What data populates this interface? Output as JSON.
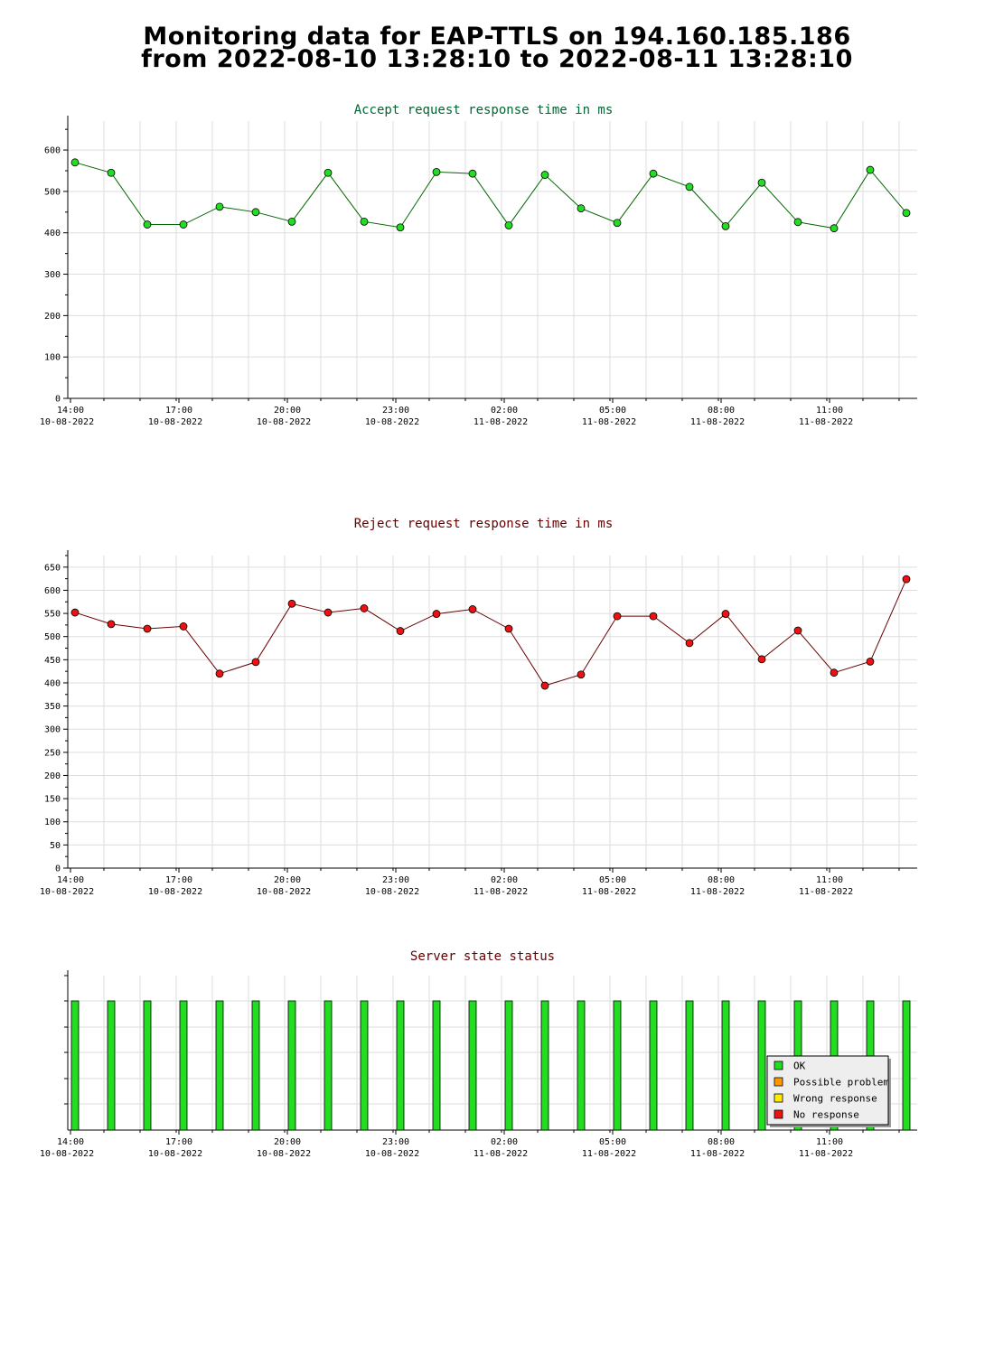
{
  "page": {
    "title_line1": "Monitoring data for EAP-TTLS on 194.160.185.186",
    "title_line2": "from 2022-08-10 13:28:10 to 2022-08-11 13:28:10"
  },
  "colors": {
    "accept_line": "#006600",
    "accept_marker": "#22dd22",
    "reject_line": "#660000",
    "reject_marker": "#ee1111",
    "status_bar": "#22dd22",
    "grid": "#dddddd",
    "accept_title": "#006633",
    "reject_title": "#660000",
    "status_title": "#660000",
    "legend_ok": "#22dd22",
    "legend_possible": "#ff9900",
    "legend_wrong": "#ffee00",
    "legend_none": "#ee1111"
  },
  "x_ticks": [
    {
      "time": "14:00",
      "date": "10-08-2022"
    },
    {
      "time": "17:00",
      "date": "10-08-2022"
    },
    {
      "time": "20:00",
      "date": "10-08-2022"
    },
    {
      "time": "23:00",
      "date": "10-08-2022"
    },
    {
      "time": "02:00",
      "date": "11-08-2022"
    },
    {
      "time": "05:00",
      "date": "11-08-2022"
    },
    {
      "time": "08:00",
      "date": "11-08-2022"
    },
    {
      "time": "11:00",
      "date": "11-08-2022"
    }
  ],
  "chart_data": [
    {
      "type": "line",
      "title": "Accept request response time in ms",
      "x": [
        "14:12",
        "15:12",
        "16:12",
        "17:12",
        "18:12",
        "19:12",
        "20:12",
        "21:12",
        "22:12",
        "23:12",
        "00:12",
        "01:12",
        "02:12",
        "03:12",
        "04:12",
        "05:12",
        "06:12",
        "07:12",
        "08:12",
        "09:12",
        "10:12",
        "11:12",
        "12:12",
        "13:12"
      ],
      "values": [
        570,
        545,
        420,
        420,
        463,
        450,
        427,
        545,
        427,
        413,
        547,
        543,
        418,
        540,
        459,
        424,
        543,
        511,
        416,
        521,
        426,
        411,
        552,
        448
      ],
      "ylim": [
        0,
        670
      ],
      "yticks": [
        0,
        100,
        200,
        300,
        400,
        500,
        600
      ],
      "grid": true
    },
    {
      "type": "line",
      "title": "Reject request response time in ms",
      "x": [
        "14:12",
        "15:12",
        "16:12",
        "17:12",
        "18:12",
        "19:12",
        "20:12",
        "21:12",
        "22:12",
        "23:12",
        "00:12",
        "01:12",
        "02:12",
        "03:12",
        "04:12",
        "05:12",
        "06:12",
        "07:12",
        "08:12",
        "09:12",
        "10:12",
        "11:12",
        "12:12",
        "13:12"
      ],
      "values": [
        552,
        527,
        517,
        522,
        420,
        445,
        571,
        552,
        561,
        512,
        549,
        559,
        517,
        394,
        418,
        544,
        544,
        486,
        549,
        451,
        513,
        422,
        446,
        624
      ],
      "ylim": [
        0,
        675
      ],
      "yticks": [
        0,
        50,
        100,
        150,
        200,
        250,
        300,
        350,
        400,
        450,
        500,
        550,
        600,
        650
      ],
      "grid": true
    },
    {
      "type": "bar",
      "title": "Server state status",
      "x": [
        "14:12",
        "15:12",
        "16:12",
        "17:12",
        "18:12",
        "19:12",
        "20:12",
        "21:12",
        "22:12",
        "23:12",
        "00:12",
        "01:12",
        "02:12",
        "03:12",
        "04:12",
        "05:12",
        "06:12",
        "07:12",
        "08:12",
        "09:12",
        "10:12",
        "11:12",
        "12:12",
        "13:12"
      ],
      "values": [
        "OK",
        "OK",
        "OK",
        "OK",
        "OK",
        "OK",
        "OK",
        "OK",
        "OK",
        "OK",
        "OK",
        "OK",
        "OK",
        "OK",
        "OK",
        "OK",
        "OK",
        "OK",
        "OK",
        "OK",
        "OK",
        "OK",
        "OK",
        "OK"
      ],
      "legend": [
        "OK",
        "Possible problem",
        "Wrong response",
        "No response"
      ],
      "legend_position": "bottom-right"
    }
  ]
}
